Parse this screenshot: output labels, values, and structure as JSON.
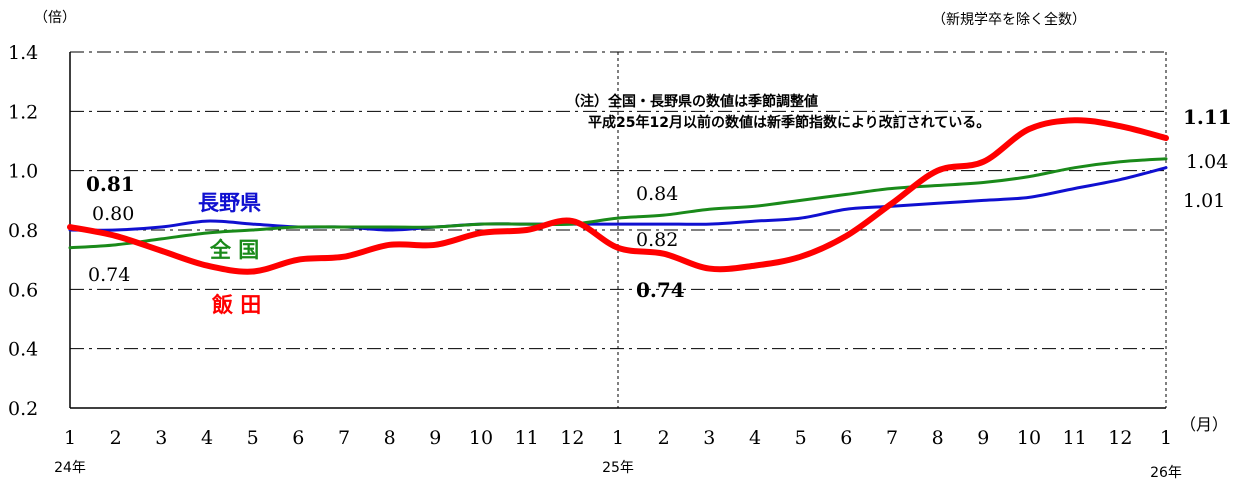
{
  "chart_data": {
    "type": "line",
    "y_unit": "（倍）",
    "note_top_right": "（新規学卒を除く全数）",
    "annotation_line1": "（注）全国・長野県の数値は季節調整値",
    "annotation_line2": "平成25年12月以前の数値は新季節指数により改訂されている。",
    "x_unit": "（月）",
    "ylim": [
      0.2,
      1.4
    ],
    "y_ticks": [
      "0.2",
      "0.4",
      "0.6",
      "0.8",
      "1.0",
      "1.2",
      "1.4"
    ],
    "y_tick_values": [
      0.2,
      0.4,
      0.6,
      0.8,
      1.0,
      1.2,
      1.4
    ],
    "categories": [
      "1",
      "2",
      "3",
      "4",
      "5",
      "6",
      "7",
      "8",
      "9",
      "10",
      "11",
      "12",
      "1",
      "2",
      "3",
      "4",
      "5",
      "6",
      "7",
      "8",
      "9",
      "10",
      "11",
      "12",
      "1"
    ],
    "year_labels": [
      {
        "label": "24年",
        "index": 0
      },
      {
        "label": "25年",
        "index": 12
      },
      {
        "label": "26年",
        "index": 24
      }
    ],
    "grid": true,
    "series": [
      {
        "name": "長野県",
        "color": "#1010d0",
        "values": [
          0.8,
          0.8,
          0.81,
          0.83,
          0.82,
          0.81,
          0.81,
          0.8,
          0.81,
          0.82,
          0.82,
          0.82,
          0.82,
          0.82,
          0.82,
          0.83,
          0.84,
          0.87,
          0.88,
          0.89,
          0.9,
          0.91,
          0.94,
          0.97,
          1.01
        ]
      },
      {
        "name": "全 国",
        "color": "#1a8a1a",
        "values": [
          0.74,
          0.75,
          0.77,
          0.79,
          0.8,
          0.81,
          0.81,
          0.81,
          0.81,
          0.82,
          0.82,
          0.82,
          0.84,
          0.85,
          0.87,
          0.88,
          0.9,
          0.92,
          0.94,
          0.95,
          0.96,
          0.98,
          1.01,
          1.03,
          1.04
        ]
      },
      {
        "name": "飯 田",
        "color": "#ff0000",
        "values": [
          0.81,
          0.78,
          0.73,
          0.68,
          0.66,
          0.7,
          0.71,
          0.75,
          0.75,
          0.79,
          0.8,
          0.83,
          0.74,
          0.72,
          0.67,
          0.68,
          0.71,
          0.78,
          0.89,
          1.0,
          1.03,
          1.14,
          1.17,
          1.15,
          1.11
        ]
      }
    ],
    "data_labels": [
      {
        "text": "0.81",
        "series": "飯 田",
        "style": "bold"
      },
      {
        "text": "0.80",
        "series": "長野県",
        "style": "normal"
      },
      {
        "text": "0.74",
        "series": "全 国",
        "style": "normal"
      },
      {
        "text": "0.84",
        "series": "全 国",
        "style": "normal"
      },
      {
        "text": "0.82",
        "series": "長野県",
        "style": "normal"
      },
      {
        "text": "0.74",
        "series": "飯 田",
        "style": "bold"
      },
      {
        "text": "1.11",
        "series": "飯 田",
        "style": "bold"
      },
      {
        "text": "1.04",
        "series": "全 国",
        "style": "normal"
      },
      {
        "text": "1.01",
        "series": "長野県",
        "style": "normal"
      }
    ]
  }
}
